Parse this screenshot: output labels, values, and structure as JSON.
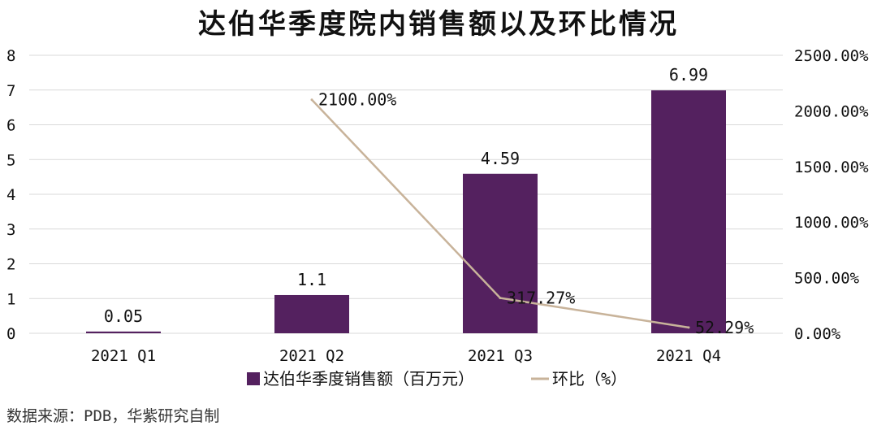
{
  "chart_data": {
    "type": "bar+line",
    "title": "达伯华季度院内销售额以及环比情况",
    "categories": [
      "2021 Q1",
      "2021 Q2",
      "2021 Q3",
      "2021 Q4"
    ],
    "series": [
      {
        "name": "达伯华季度销售额（百万元）",
        "type": "bar",
        "axis": "left",
        "values": [
          0.05,
          1.1,
          4.59,
          6.99
        ],
        "labels": [
          "0.05",
          "1.1",
          "4.59",
          "6.99"
        ],
        "color": "#54215f"
      },
      {
        "name": "环比（%）",
        "type": "line",
        "axis": "right",
        "values": [
          null,
          2100.0,
          317.27,
          52.29
        ],
        "labels": [
          "",
          "2100.00%",
          "317.27%",
          "52.29%"
        ],
        "color": "#c8b39a"
      }
    ],
    "y_left": {
      "lim": [
        0,
        8
      ],
      "ticks": [
        "0",
        "1",
        "2",
        "3",
        "4",
        "5",
        "6",
        "7",
        "8"
      ]
    },
    "y_right": {
      "lim": [
        0,
        2500
      ],
      "ticks": [
        "0.00%",
        "500.00%",
        "1000.00%",
        "1500.00%",
        "2000.00%",
        "2500.00%"
      ]
    },
    "grid": true,
    "legend": "bottom"
  },
  "source": "数据来源：PDB，华紫研究自制"
}
